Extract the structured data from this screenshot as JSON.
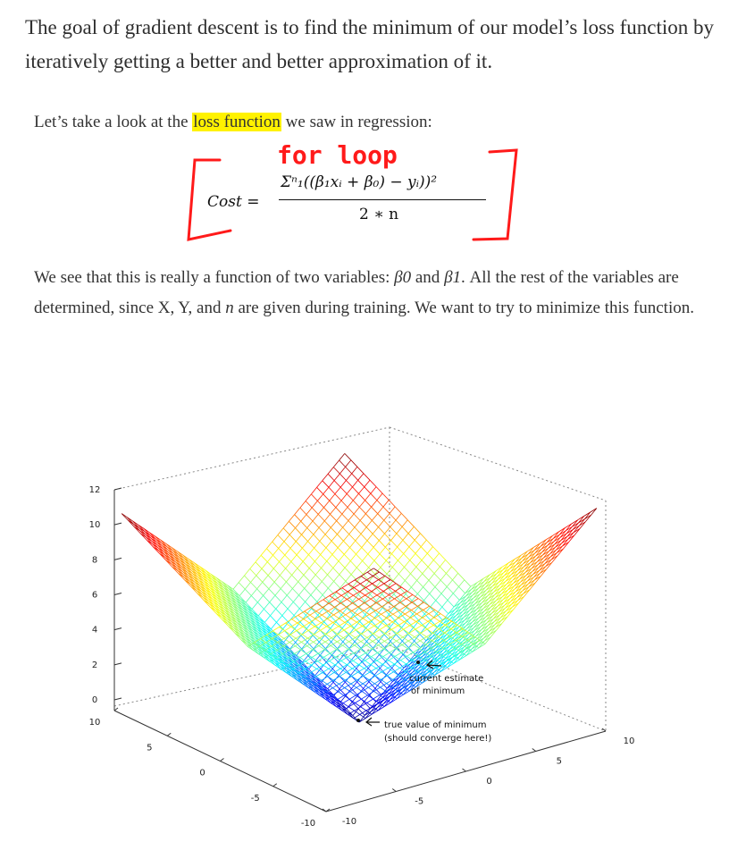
{
  "intro_text": "The goal of gradient descent is to find the minimum of our model’s loss function by iteratively getting a better and better approximation of it.",
  "look_text": {
    "prefix": "Let’s take a look at the ",
    "highlight": "loss function",
    "suffix": " we saw in regression:"
  },
  "annotation_text": "for loop",
  "formula": {
    "lhs": "Cost =",
    "numerator": "Σⁿ₁((β₁xᵢ + β₀) − yᵢ))²",
    "denominator": "2 ∗ n"
  },
  "variables_text": {
    "part1": "We see that this is really a function of two variables: ",
    "b0": "β0",
    "and": " and ",
    "b1": "β1",
    "part2": ". All the rest of the variables are determined, since X, Y, and ",
    "n": "n",
    "part3": " are given during training. We want to try to minimize this function."
  },
  "colors": {
    "highlight": "#fff200",
    "annotation": "#ff1a1a",
    "text": "#333333"
  },
  "chart_data": {
    "type": "surface",
    "function": "|x| + |y| (V-shaped cost surface)",
    "z_ticks": [
      "12",
      "10",
      "8",
      "6",
      "4",
      "2",
      "0"
    ],
    "left_axis_ticks": [
      "10",
      "5",
      "0",
      "-5",
      "-10"
    ],
    "right_axis_ticks": [
      "-10",
      "-5",
      "0",
      "5",
      "10"
    ],
    "zlim": [
      0,
      12
    ],
    "grid": true,
    "annotations": {
      "current": "current estimate of minimum",
      "current_line1": "current estimate",
      "current_line2": "of minimum",
      "true": "true value of minimum (should converge here!)",
      "true_line1": "true value of minimum",
      "true_line2": "(should converge here!)"
    }
  }
}
